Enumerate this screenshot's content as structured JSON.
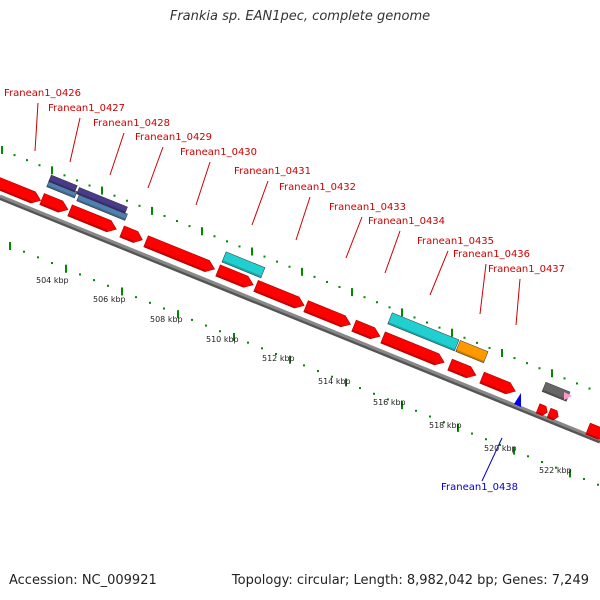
{
  "title": "Frankia sp. EAN1pec, complete genome",
  "footer": {
    "accession": "Accession: NC_009921",
    "summary": "Topology: circular; Length: 8,982,042 bp; Genes: 7,249"
  },
  "colors": {
    "cds": "#ff0000",
    "cds_dark": "#aa0000",
    "backbone": "#888888",
    "backbone_dark": "#555555",
    "dots": "#008800",
    "label_forward": "#cc0000",
    "label_reverse": "#0000cc",
    "cyan": "#20d0d0",
    "orange": "#ff9900",
    "gray": "#666666",
    "purple": "#4a3a8a",
    "steel": "#5080b0",
    "pink": "#ff99cc",
    "blue": "#0000ee"
  },
  "scale": {
    "unit": "kbp",
    "ticks": [
      "504 kbp",
      "506 kbp",
      "508 kbp",
      "510 kbp",
      "512 kbp",
      "514 kbp",
      "516 kbp",
      "518 kbp",
      "520 kbp",
      "522 kbp"
    ]
  },
  "genes": [
    {
      "label": "Franean1_0426",
      "strand": "+"
    },
    {
      "label": "Franean1_0427",
      "strand": "+"
    },
    {
      "label": "Franean1_0428",
      "strand": "+"
    },
    {
      "label": "Franean1_0429",
      "strand": "+"
    },
    {
      "label": "Franean1_0430",
      "strand": "+"
    },
    {
      "label": "Franean1_0431",
      "strand": "+"
    },
    {
      "label": "Franean1_0432",
      "strand": "+"
    },
    {
      "label": "Franean1_0433",
      "strand": "+"
    },
    {
      "label": "Franean1_0434",
      "strand": "+"
    },
    {
      "label": "Franean1_0435",
      "strand": "+"
    },
    {
      "label": "Franean1_0436",
      "strand": "+"
    },
    {
      "label": "Franean1_0437",
      "strand": "+"
    },
    {
      "label": "Franean1_0438",
      "strand": "-"
    }
  ]
}
